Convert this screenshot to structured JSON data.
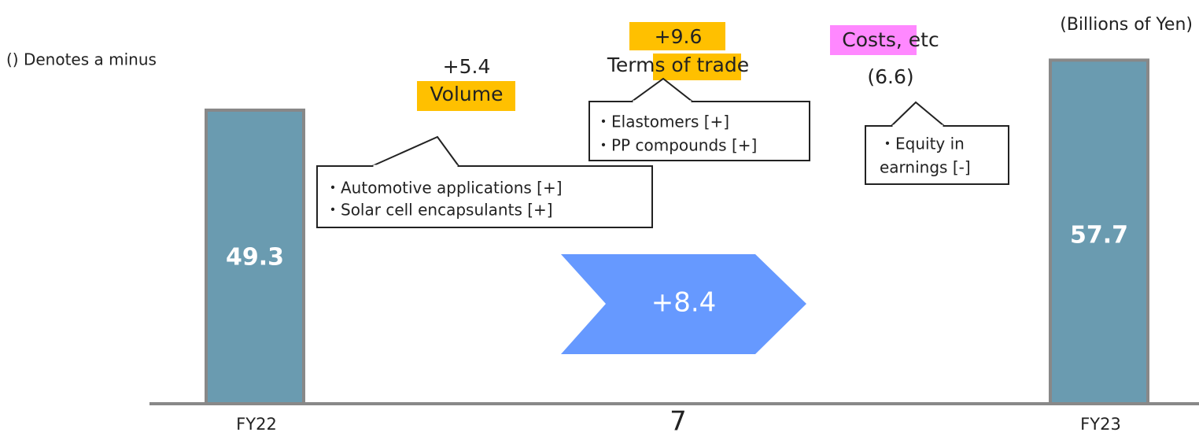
{
  "chart_data": {
    "type": "waterfall",
    "subtitle": "() Denotes a minus",
    "unit_label": "(Billions of Yen)",
    "categories": [
      "FY22",
      "FY23"
    ],
    "values": [
      49.3,
      57.7
    ],
    "color": "#6a9bb0",
    "ylim": [
      0,
      60
    ],
    "steps": [
      {
        "name": "Volume",
        "value": 5.4,
        "value_label": "+5.4",
        "highlight_color": "#ffc000",
        "notes": [
          "・Automotive applications [+]",
          "・Solar cell encapsulants [+]"
        ]
      },
      {
        "name": "Terms of trade",
        "value": 9.6,
        "value_label": "+9.6",
        "highlight_color": "#ffc000",
        "notes": [
          "・Elastomers [+]",
          "・PP compounds [+]"
        ]
      },
      {
        "name": "Costs, etc",
        "value": -6.6,
        "value_label": "(6.6)",
        "highlight_color": "#ff88ff",
        "notes": [
          "・Equity in",
          "earnings [-]"
        ]
      }
    ],
    "total_change": {
      "value": 8.4,
      "value_label": "+8.4",
      "color": "#6699ff"
    },
    "page_number": "7"
  }
}
